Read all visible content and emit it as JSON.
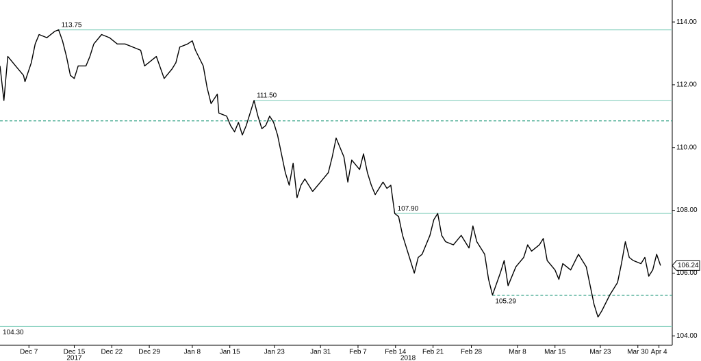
{
  "chart_data": {
    "type": "line",
    "x": [
      0,
      0.5,
      1,
      2,
      3,
      3.2,
      4,
      4.5,
      5,
      6,
      7,
      7.5,
      8,
      8.5,
      9,
      9.5,
      10,
      11,
      11.5,
      12,
      13,
      14,
      15,
      16,
      17,
      18,
      18.5,
      19,
      20,
      21,
      22,
      22.5,
      23,
      24,
      24.6,
      25,
      26,
      26.5,
      27,
      27.8,
      28,
      29,
      29.5,
      30,
      30.5,
      31,
      31.5,
      32,
      32.5,
      33,
      33.5,
      34,
      34.5,
      35,
      35.5,
      36,
      36.5,
      37,
      37.5,
      38,
      38.5,
      39,
      40,
      41,
      42,
      42.5,
      43,
      44,
      44.5,
      45,
      46,
      46.5,
      47,
      47.5,
      48,
      49,
      49.5,
      50,
      50.5,
      51,
      51.5,
      52,
      52.5,
      53,
      53.5,
      54,
      55,
      55.5,
      56,
      56.5,
      57,
      58,
      59,
      60,
      60.5,
      61,
      62,
      62.5,
      63,
      64,
      64.5,
      65,
      66,
      67,
      67.5,
      68,
      69,
      69.5,
      70,
      71,
      71.5,
      72,
      73,
      74,
      75,
      75.5,
      76,
      76.5,
      77,
      78,
      79,
      79.5,
      80,
      80.5,
      81,
      82,
      82.5,
      83,
      83.5,
      84,
      84.5
    ],
    "series": [
      {
        "color": "#000000",
        "values": [
          112.6,
          111.5,
          112.9,
          112.6,
          112.3,
          112.1,
          112.7,
          113.3,
          113.6,
          113.5,
          113.7,
          113.75,
          113.4,
          112.9,
          112.3,
          112.2,
          112.6,
          112.6,
          112.9,
          113.3,
          113.6,
          113.5,
          113.3,
          113.3,
          113.2,
          113.1,
          112.6,
          112.7,
          112.9,
          112.2,
          112.5,
          112.7,
          113.2,
          113.3,
          113.4,
          113.1,
          112.6,
          111.9,
          111.4,
          111.7,
          111.1,
          111.0,
          110.7,
          110.5,
          110.8,
          110.4,
          110.7,
          111.1,
          111.5,
          111.0,
          110.6,
          110.7,
          111.0,
          110.8,
          110.4,
          109.8,
          109.2,
          108.8,
          109.5,
          108.4,
          108.8,
          109.0,
          108.6,
          108.9,
          109.2,
          109.7,
          110.3,
          109.7,
          108.9,
          109.6,
          109.3,
          109.8,
          109.2,
          108.8,
          108.5,
          108.9,
          108.7,
          108.8,
          107.9,
          107.8,
          107.2,
          106.8,
          106.4,
          106.0,
          106.5,
          106.6,
          107.2,
          107.7,
          107.9,
          107.2,
          107.0,
          106.9,
          107.2,
          106.8,
          107.5,
          107.0,
          106.6,
          105.8,
          105.3,
          106.0,
          106.4,
          105.6,
          106.2,
          106.5,
          106.9,
          106.7,
          106.9,
          107.1,
          106.4,
          106.1,
          105.8,
          106.3,
          106.1,
          106.6,
          106.2,
          105.6,
          105.0,
          104.6,
          104.8,
          105.3,
          105.7,
          106.3,
          107.0,
          106.5,
          106.4,
          106.3,
          106.5,
          105.9,
          106.1,
          106.6,
          106.24
        ]
      }
    ],
    "xlim": [
      0,
      86
    ],
    "xticks": [
      {
        "value": 3.7,
        "label": "Dec 7"
      },
      {
        "value": 9.5,
        "label": "Dec 15"
      },
      {
        "value": 14.3,
        "label": "Dec 22"
      },
      {
        "value": 19.1,
        "label": "Dec 29"
      },
      {
        "value": 24.6,
        "label": "Jan 8"
      },
      {
        "value": 29.4,
        "label": "Jan 15"
      },
      {
        "value": 35.1,
        "label": "Jan 23"
      },
      {
        "value": 41.0,
        "label": "Jan 31"
      },
      {
        "value": 45.8,
        "label": "Feb 7"
      },
      {
        "value": 50.6,
        "label": "Feb 14"
      },
      {
        "value": 55.4,
        "label": "Feb 21"
      },
      {
        "value": 60.3,
        "label": "Feb 28"
      },
      {
        "value": 66.2,
        "label": "Mar 8"
      },
      {
        "value": 71.0,
        "label": "Mar 15"
      },
      {
        "value": 76.8,
        "label": "Mar 23"
      },
      {
        "value": 81.6,
        "label": "Mar 30"
      },
      {
        "value": 84.3,
        "label": "Apr 4"
      }
    ],
    "year_labels": [
      {
        "value": 9.5,
        "label": "2017"
      },
      {
        "value": 52.2,
        "label": "2018"
      }
    ],
    "ylim": [
      103.7,
      114.7
    ],
    "yticks": [
      {
        "value": 104,
        "label": "104.00"
      },
      {
        "value": 106,
        "label": "106.00"
      },
      {
        "value": 108,
        "label": "108.00"
      },
      {
        "value": 110,
        "label": "110.00"
      },
      {
        "value": 112,
        "label": "112.00"
      },
      {
        "value": 114,
        "label": "114.00"
      }
    ],
    "levels": [
      {
        "value": 113.75,
        "label": "113.75",
        "x": 7.5,
        "style": "solid",
        "color": "#8fd3c3"
      },
      {
        "value": 111.5,
        "label": "111.50",
        "x": 32.5,
        "style": "solid",
        "color": "#8fd3c3"
      },
      {
        "value": 110.85,
        "x": 0,
        "style": "dashed",
        "color": "#3aa58a"
      },
      {
        "value": 107.9,
        "label": "107.90",
        "x": 50.5,
        "style": "solid",
        "color": "#8fd3c3"
      },
      {
        "value": 105.29,
        "label": "105.29",
        "x": 63,
        "style": "dashed",
        "color": "#3aa58a"
      },
      {
        "value": 104.3,
        "label": "104.30",
        "x": 0,
        "style": "solid",
        "color": "#8fd3c3"
      }
    ],
    "last_price": {
      "value": 106.24,
      "label": "106.24"
    }
  }
}
